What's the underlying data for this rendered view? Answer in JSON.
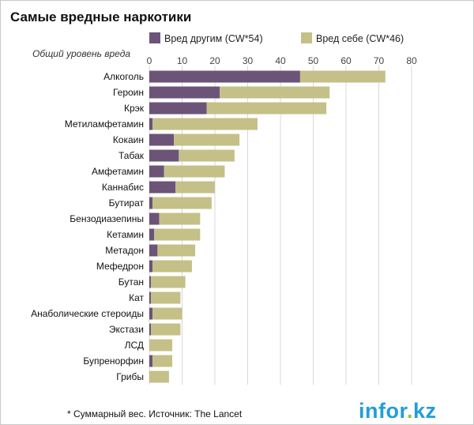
{
  "chart_data": {
    "type": "bar",
    "orientation": "horizontal",
    "stacked": true,
    "title": "Самые вредные наркотики",
    "axis_caption": "Общий уровень вреда",
    "xlim": [
      0,
      80
    ],
    "x_ticks": [
      0,
      10,
      20,
      30,
      40,
      50,
      60,
      70,
      80
    ],
    "grid": true,
    "legend_position": "top-right",
    "categories": [
      "Алкоголь",
      "Героин",
      "Крэк",
      "Метиламфетамин",
      "Кокаин",
      "Табак",
      "Амфетамин",
      "Каннабис",
      "Бутират",
      "Бензодиазепины",
      "Кетамин",
      "Метадон",
      "Мефедрон",
      "Бутан",
      "Кат",
      "Анаболические стероиды",
      "Экстази",
      "ЛСД",
      "Бупренорфин",
      "Грибы"
    ],
    "series": [
      {
        "name": "Вред другим (CW*54)",
        "color": "#6b5478",
        "values": [
          46,
          21.5,
          17.5,
          1,
          7.5,
          9,
          4.5,
          8,
          1,
          3,
          1.5,
          2.5,
          1,
          0.5,
          0.5,
          1,
          0.5,
          0,
          1,
          0
        ]
      },
      {
        "name": "Вред себе (CW*46)",
        "color": "#c4c088",
        "values": [
          26,
          33.5,
          36.5,
          32,
          20,
          17,
          18.5,
          12,
          18,
          12.5,
          14,
          11.5,
          12,
          10.5,
          9,
          9,
          9,
          7,
          6,
          6
        ]
      }
    ]
  },
  "footnote": "* Суммарный вес. Источник: The Lancet",
  "brand": {
    "name": "infor",
    "dot": ".",
    "tld": "kz"
  }
}
